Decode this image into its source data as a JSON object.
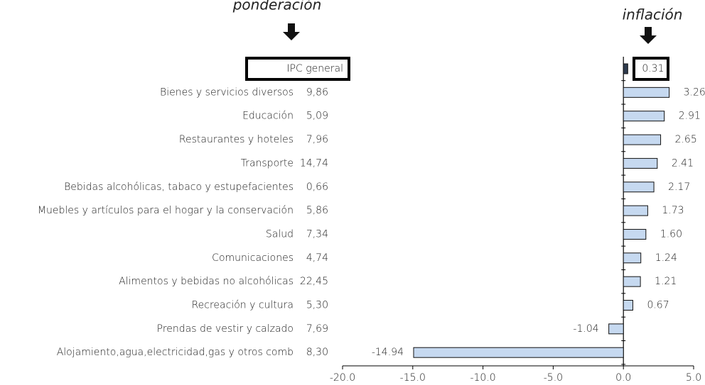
{
  "chart_data": {
    "type": "bar",
    "orientation": "horizontal",
    "annotations": [
      "ponderación",
      "inflación"
    ],
    "categories": [
      "IPC general",
      "Bienes y servicios diversos",
      "Educación",
      "Restaurantes y hoteles",
      "Transporte",
      "Bebidas alcohólicas, tabaco y estupefacientes",
      "Muebles y artículos para el hogar y la conservación",
      "Salud",
      "Comunicaciones",
      "Alimentos y bebidas no alcohólicas",
      "Recreación y cultura",
      "Prendas de vestir y calzado",
      "Alojamiento,agua,electricidad,gas y otros comb"
    ],
    "weights": [
      null,
      "9,86",
      "5,09",
      "7,96",
      "14,74",
      "0,66",
      "5,86",
      "7,34",
      "4,74",
      "22,45",
      "5,30",
      "7,69",
      "8,30"
    ],
    "values": [
      0.31,
      3.26,
      2.91,
      2.65,
      2.41,
      2.17,
      1.73,
      1.6,
      1.24,
      1.21,
      0.67,
      -1.04,
      -14.94
    ],
    "value_labels": [
      "0.31",
      "3.26",
      "2.91",
      "2.65",
      "2.41",
      "2.17",
      "1.73",
      "1.60",
      "1.24",
      "1.21",
      "0.67",
      "-1.04",
      "-14.94"
    ],
    "colors": [
      "#2e3b4e",
      "#c6d9f0",
      "#c6d9f0",
      "#c6d9f0",
      "#c6d9f0",
      "#c6d9f0",
      "#c6d9f0",
      "#c6d9f0",
      "#c6d9f0",
      "#c6d9f0",
      "#c6d9f0",
      "#c6d9f0",
      "#c6d9f0"
    ],
    "xlim": [
      -20,
      5
    ],
    "xticks": [
      {
        "value": -20,
        "label": "-20.0"
      },
      {
        "value": -15,
        "label": "-15.0"
      },
      {
        "value": -10,
        "label": "-10.0"
      },
      {
        "value": -5,
        "label": "-5.0"
      },
      {
        "value": 0,
        "label": "0.0"
      },
      {
        "value": 5,
        "label": "5.0"
      }
    ]
  }
}
